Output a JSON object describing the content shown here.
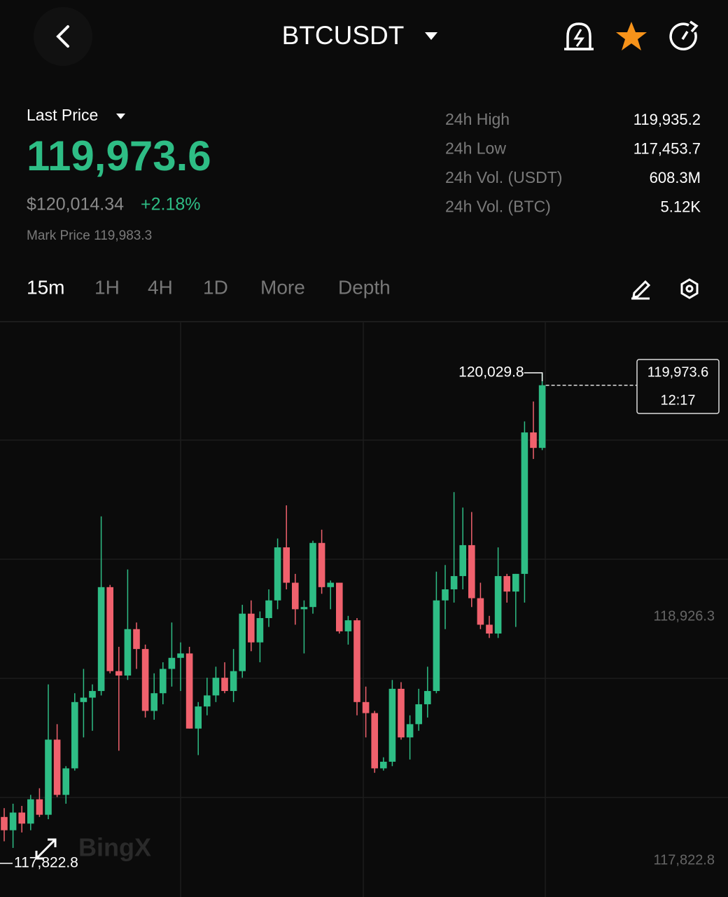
{
  "header": {
    "title": "BTCUSDT"
  },
  "price": {
    "label": "Last Price",
    "last": "119,973.6",
    "usd": "$120,014.34",
    "change": "+2.18%",
    "mark": "Mark Price 119,983.3"
  },
  "stats": [
    {
      "label": "24h High",
      "value": "119,935.2"
    },
    {
      "label": "24h Low",
      "value": "117,453.7"
    },
    {
      "label": "24h Vol. (USDT)",
      "value": "608.3M"
    },
    {
      "label": "24h Vol. (BTC)",
      "value": "5.12K"
    }
  ],
  "tabs": [
    "15m",
    "1H",
    "4H",
    "1D",
    "More",
    "Depth"
  ],
  "chart_data": {
    "type": "candlestick",
    "up_color": "#2ebd85",
    "down_color": "#f0616d",
    "ylim": [
      117657.9,
      120258.1
    ],
    "yticks": [
      {
        "value": 118926.3,
        "label": "118,926.3"
      },
      {
        "value": 117822.8,
        "label": "117,822.8"
      }
    ],
    "gridlines": [
      119725.4,
      119186.3,
      118647.3,
      118108.2
    ],
    "high_marker": {
      "value": 120029.8,
      "label": "120,029.8"
    },
    "low_marker": {
      "value": 117822.8,
      "label": "117,822.8"
    },
    "last_price": {
      "value": 119973.6,
      "label": "119,973.6",
      "time": "12:17"
    },
    "watermark": "BingX",
    "open": [
      118020,
      117960,
      118040,
      117990,
      118100,
      118030,
      118370,
      118120,
      118240,
      118540,
      118560,
      118590,
      119060,
      118680,
      118660,
      118870,
      118780,
      118500,
      118580,
      118690,
      118740,
      118760,
      118420,
      118520,
      118570,
      118650,
      118590,
      118680,
      118940,
      118810,
      118920,
      119000,
      119240,
      119080,
      118960,
      118970,
      119260,
      119060,
      119080,
      118860,
      118910,
      118540,
      118490,
      118240,
      118270,
      118600,
      118380,
      118440,
      118530,
      118590,
      119000,
      119050,
      119110,
      119250,
      119010,
      118890,
      118850,
      119110,
      119040,
      119120,
      119760,
      119690
    ],
    "high": [
      118060,
      118080,
      118070,
      118120,
      118150,
      118620,
      118440,
      118250,
      118580,
      118690,
      118620,
      119380,
      119070,
      118790,
      119140,
      118900,
      118800,
      118670,
      118720,
      118900,
      118810,
      118790,
      118540,
      118650,
      118700,
      118720,
      118780,
      118980,
      119000,
      118950,
      119050,
      119280,
      119430,
      119120,
      119000,
      119270,
      119320,
      119090,
      119080,
      118930,
      118920,
      118610,
      118500,
      118290,
      118640,
      118630,
      118480,
      118600,
      118700,
      119130,
      119160,
      119490,
      119420,
      119400,
      119080,
      118930,
      119240,
      119120,
      119120,
      119810,
      119900,
      120029.8
    ],
    "low": [
      117910,
      117880,
      117950,
      117960,
      118020,
      118010,
      118110,
      118080,
      118230,
      118380,
      118410,
      118570,
      118670,
      118320,
      118640,
      118690,
      118470,
      118460,
      118530,
      118610,
      118590,
      118420,
      118300,
      118480,
      118540,
      118580,
      118540,
      118650,
      118770,
      118720,
      118880,
      118960,
      119050,
      118890,
      118760,
      118940,
      119030,
      118960,
      118850,
      118800,
      118480,
      118380,
      118220,
      118230,
      118250,
      118370,
      118280,
      118410,
      118470,
      118580,
      118870,
      118990,
      119050,
      118970,
      118870,
      118830,
      118830,
      118990,
      118880,
      118990,
      119640,
      119680
    ],
    "close": [
      117960,
      118040,
      117990,
      118100,
      118030,
      118370,
      118120,
      118240,
      118540,
      118560,
      118590,
      119060,
      118680,
      118660,
      118870,
      118780,
      118500,
      118580,
      118690,
      118740,
      118760,
      118420,
      118520,
      118570,
      118650,
      118590,
      118680,
      118940,
      118810,
      118920,
      119000,
      119240,
      119080,
      118960,
      118970,
      119260,
      119060,
      119080,
      118860,
      118910,
      118540,
      118490,
      118240,
      118270,
      118600,
      118380,
      118440,
      118530,
      118590,
      119000,
      119050,
      119110,
      119250,
      119010,
      118890,
      118850,
      119110,
      119040,
      119120,
      119760,
      119690,
      119973.6
    ]
  }
}
